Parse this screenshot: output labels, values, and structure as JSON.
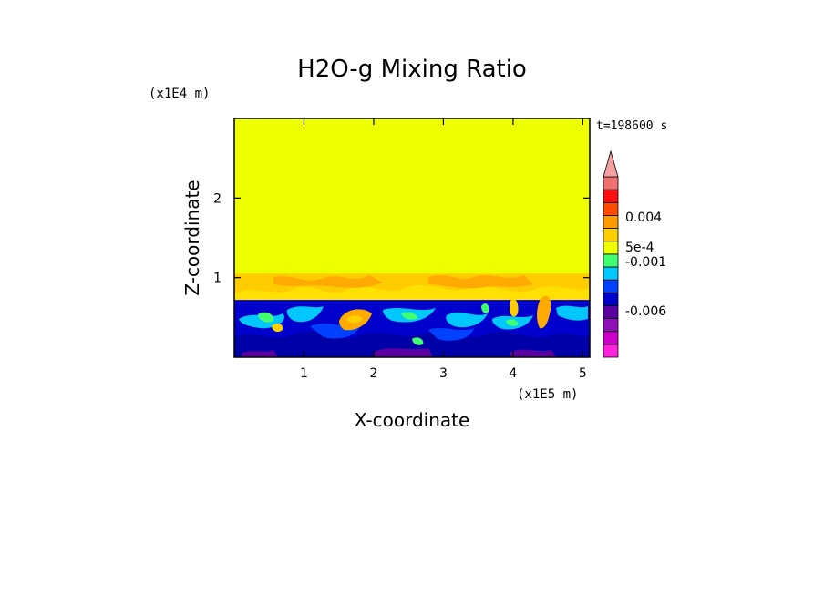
{
  "chart_data": {
    "type": "heatmap",
    "title": "H2O-g Mixing Ratio",
    "xlabel": "X-coordinate",
    "ylabel": "Z-coordinate",
    "x_unit": "(x1E5 m)",
    "y_unit": "(x1E4 m)",
    "time_label": "t=198600 s",
    "xlim": [
      0,
      5.1
    ],
    "ylim": [
      0,
      3
    ],
    "x_ticks": [
      {
        "value": 1,
        "label": "1"
      },
      {
        "value": 2,
        "label": "2"
      },
      {
        "value": 3,
        "label": "3"
      },
      {
        "value": 4,
        "label": "4"
      },
      {
        "value": 5,
        "label": "5"
      }
    ],
    "y_ticks": [
      {
        "value": 1,
        "label": "1"
      },
      {
        "value": 2,
        "label": "2"
      }
    ],
    "colorbar": {
      "extend": "max",
      "arrow_color": "#f4a0a0",
      "colors": [
        "#ff22dd",
        "#d000cc",
        "#9010b8",
        "#5a00a0",
        "#0000cc",
        "#0040ff",
        "#00c8ff",
        "#40ff70",
        "#f0ff00",
        "#ffd000",
        "#ff9a00",
        "#ff4a00",
        "#ff1010",
        "#f07070"
      ],
      "labels": [
        "0.004",
        "5e-4",
        "-0.001",
        "-0.006"
      ]
    },
    "layers": [
      {
        "name": "upper",
        "color": "#eeff00",
        "z_bottom": 1.0,
        "z_top": 3.0
      },
      {
        "name": "transition",
        "color": "#ffcc00",
        "z_bottom": 0.72,
        "z_top": 1.05
      },
      {
        "name": "lower",
        "color": "#0000cc",
        "z_bottom": 0,
        "z_top": 0.72
      }
    ]
  }
}
